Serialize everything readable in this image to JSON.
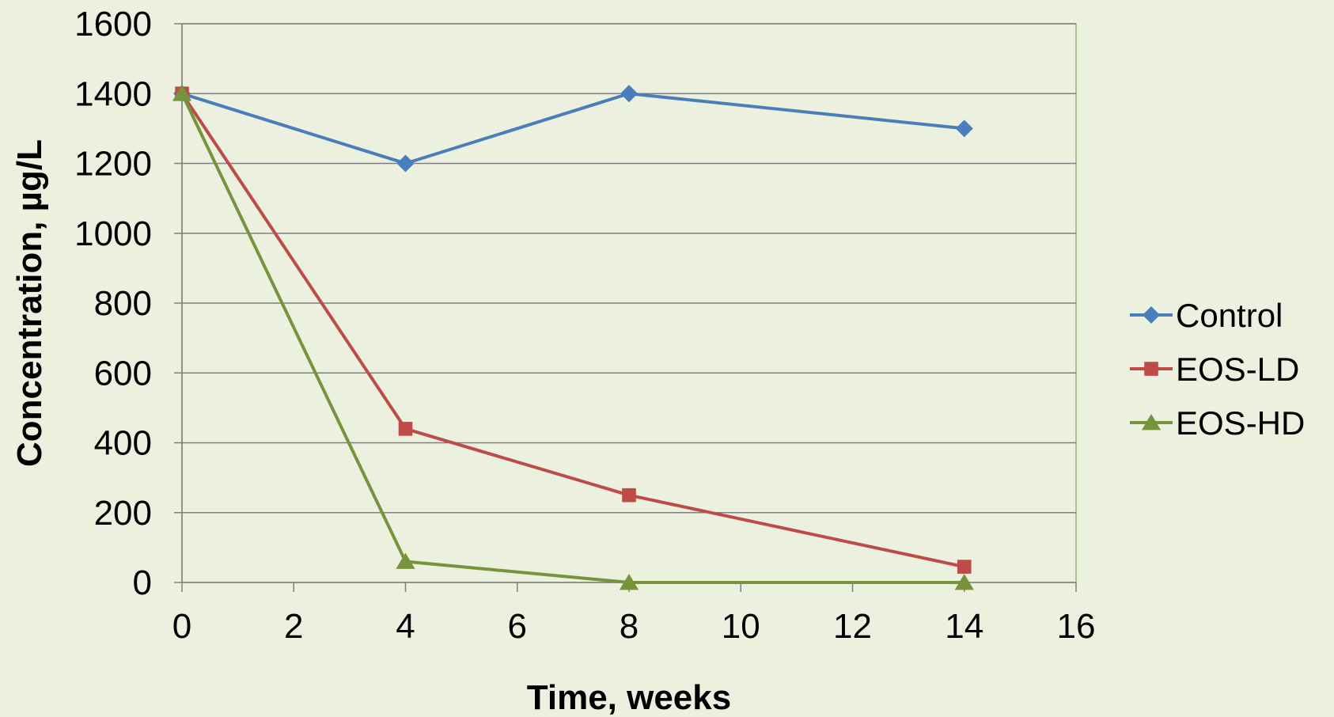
{
  "chart_data": {
    "type": "line",
    "title": "",
    "xlabel": "Time, weeks",
    "ylabel": "Concentration, µg/L",
    "xlim": [
      0,
      16
    ],
    "ylim": [
      0,
      1600
    ],
    "xticks": [
      0,
      2,
      4,
      6,
      8,
      10,
      12,
      14,
      16
    ],
    "yticks": [
      0,
      200,
      400,
      600,
      800,
      1000,
      1200,
      1400,
      1600
    ],
    "grid": "horizontal",
    "legend_position": "right",
    "series": [
      {
        "name": "Control",
        "color": "#4A7EBB",
        "marker": "diamond",
        "x": [
          0,
          4,
          8,
          14
        ],
        "y": [
          1400,
          1200,
          1400,
          1300
        ]
      },
      {
        "name": "EOS-LD",
        "color": "#BE4B48",
        "marker": "square",
        "x": [
          0,
          4,
          8,
          14
        ],
        "y": [
          1400,
          440,
          250,
          45
        ]
      },
      {
        "name": "EOS-HD",
        "color": "#77933C",
        "marker": "triangle",
        "x": [
          0,
          4,
          8,
          14
        ],
        "y": [
          1400,
          60,
          0,
          0
        ]
      }
    ]
  },
  "colors": {
    "background": "#EBF1DE",
    "gridline": "#7F7F7F",
    "axis": "#7F7F7F"
  }
}
